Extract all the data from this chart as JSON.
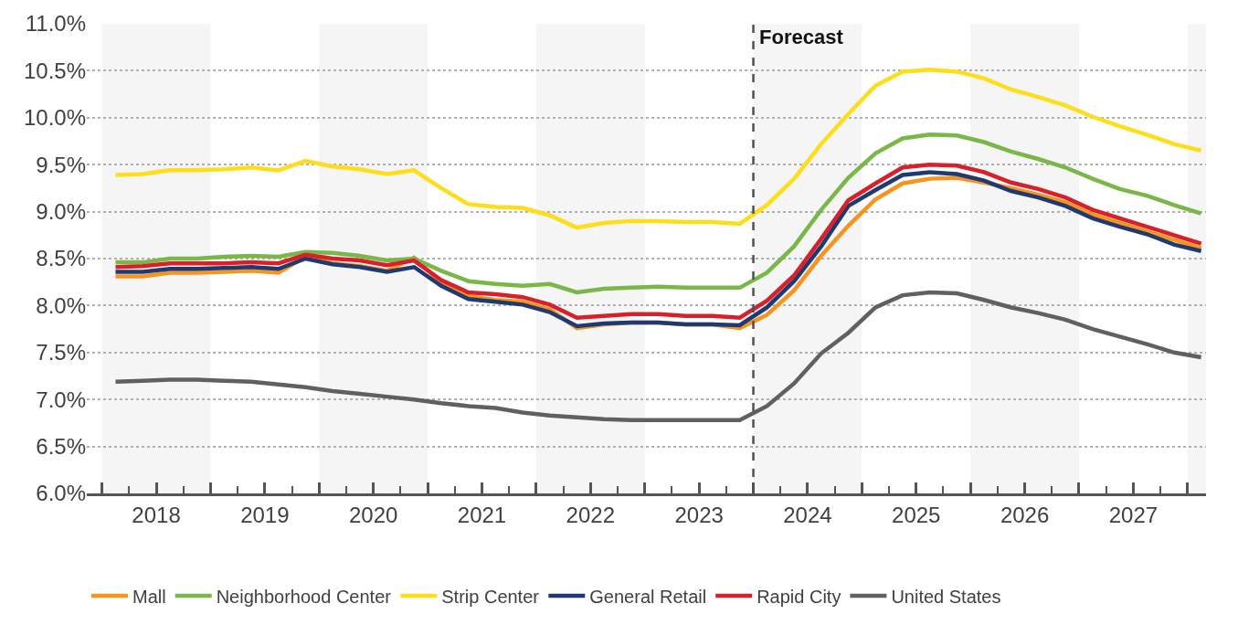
{
  "chart_data": {
    "type": "line",
    "x": [
      2018.125,
      2018.375,
      2018.625,
      2018.875,
      2019.125,
      2019.375,
      2019.625,
      2019.875,
      2020.125,
      2020.375,
      2020.625,
      2020.875,
      2021.125,
      2021.375,
      2021.625,
      2021.875,
      2022.125,
      2022.375,
      2022.625,
      2022.875,
      2023.125,
      2023.375,
      2023.625,
      2023.875,
      2024.125,
      2024.375,
      2024.625,
      2024.875,
      2025.125,
      2025.375,
      2025.625,
      2025.875,
      2026.125,
      2026.375,
      2026.625,
      2026.875,
      2027.125,
      2027.375,
      2027.625,
      2027.875,
      2028.125
    ],
    "series": [
      {
        "name": "Mall",
        "color": "#f7941d",
        "values": [
          8.31,
          8.31,
          8.35,
          8.35,
          8.36,
          8.37,
          8.35,
          8.52,
          8.45,
          8.42,
          8.37,
          8.51,
          8.24,
          8.1,
          8.06,
          8.04,
          7.96,
          7.76,
          7.8,
          7.82,
          7.82,
          7.8,
          7.8,
          7.76,
          7.9,
          8.16,
          8.53,
          8.85,
          9.13,
          9.3,
          9.35,
          9.36,
          9.31,
          9.25,
          9.18,
          9.1,
          8.97,
          8.88,
          8.79,
          8.7,
          8.61
        ]
      },
      {
        "name": "Neighborhood Center",
        "color": "#7ab648",
        "values": [
          8.46,
          8.46,
          8.5,
          8.5,
          8.52,
          8.53,
          8.52,
          8.57,
          8.56,
          8.53,
          8.48,
          8.5,
          8.37,
          8.26,
          8.23,
          8.21,
          8.23,
          8.14,
          8.18,
          8.19,
          8.2,
          8.19,
          8.19,
          8.19,
          8.35,
          8.63,
          9.02,
          9.36,
          9.62,
          9.78,
          9.82,
          9.81,
          9.74,
          9.64,
          9.56,
          9.47,
          9.35,
          9.24,
          9.17,
          9.07,
          8.98
        ]
      },
      {
        "name": "Strip Center",
        "color": "#fedd1b",
        "values": [
          9.39,
          9.4,
          9.44,
          9.44,
          9.45,
          9.47,
          9.44,
          9.54,
          9.48,
          9.45,
          9.4,
          9.44,
          9.25,
          9.08,
          9.05,
          9.04,
          8.96,
          8.83,
          8.88,
          8.9,
          8.9,
          8.89,
          8.89,
          8.87,
          9.07,
          9.35,
          9.72,
          10.04,
          10.34,
          10.49,
          10.51,
          10.49,
          10.42,
          10.3,
          10.22,
          10.13,
          10.01,
          9.91,
          9.82,
          9.72,
          9.65
        ]
      },
      {
        "name": "General Retail",
        "color": "#1f3a73",
        "values": [
          8.36,
          8.36,
          8.39,
          8.39,
          8.4,
          8.41,
          8.39,
          8.5,
          8.44,
          8.41,
          8.36,
          8.41,
          8.21,
          8.07,
          8.04,
          8.01,
          7.93,
          7.78,
          7.81,
          7.82,
          7.82,
          7.8,
          7.8,
          7.79,
          7.98,
          8.26,
          8.63,
          9.06,
          9.23,
          9.39,
          9.42,
          9.4,
          9.33,
          9.22,
          9.15,
          9.06,
          8.93,
          8.84,
          8.76,
          8.65,
          8.58
        ]
      },
      {
        "name": "Rapid City",
        "color": "#d7202a",
        "values": [
          8.41,
          8.42,
          8.45,
          8.45,
          8.45,
          8.46,
          8.45,
          8.54,
          8.5,
          8.48,
          8.43,
          8.48,
          8.27,
          8.14,
          8.12,
          8.09,
          8.01,
          7.87,
          7.89,
          7.91,
          7.91,
          7.89,
          7.89,
          7.87,
          8.05,
          8.32,
          8.71,
          9.12,
          9.3,
          9.47,
          9.5,
          9.49,
          9.42,
          9.31,
          9.24,
          9.15,
          9.02,
          8.93,
          8.84,
          8.75,
          8.66
        ]
      },
      {
        "name": "United States",
        "color": "#5f6062",
        "values": [
          7.19,
          7.2,
          7.21,
          7.21,
          7.2,
          7.19,
          7.16,
          7.13,
          7.09,
          7.06,
          7.03,
          7.0,
          6.96,
          6.93,
          6.91,
          6.86,
          6.83,
          6.81,
          6.79,
          6.78,
          6.78,
          6.78,
          6.78,
          6.78,
          6.93,
          7.17,
          7.49,
          7.71,
          7.98,
          8.11,
          8.14,
          8.13,
          8.06,
          7.98,
          7.92,
          7.85,
          7.75,
          7.67,
          7.59,
          7.5,
          7.45
        ]
      }
    ],
    "xlim": [
      2017.86,
      2028.17
    ],
    "xticks": [
      {
        "value": 2018,
        "label": null
      },
      {
        "value": 2018.5,
        "label": "2018"
      },
      {
        "value": 2019,
        "label": null
      },
      {
        "value": 2019.5,
        "label": "2019"
      },
      {
        "value": 2020,
        "label": null
      },
      {
        "value": 2020.5,
        "label": "2020"
      },
      {
        "value": 2021,
        "label": null
      },
      {
        "value": 2021.5,
        "label": "2021"
      },
      {
        "value": 2022,
        "label": null
      },
      {
        "value": 2022.5,
        "label": "2022"
      },
      {
        "value": 2023,
        "label": null
      },
      {
        "value": 2023.5,
        "label": "2023"
      },
      {
        "value": 2024,
        "label": null
      },
      {
        "value": 2024.5,
        "label": "2024"
      },
      {
        "value": 2025,
        "label": null
      },
      {
        "value": 2025.5,
        "label": "2025"
      },
      {
        "value": 2026,
        "label": null
      },
      {
        "value": 2026.5,
        "label": "2026"
      },
      {
        "value": 2027,
        "label": null
      },
      {
        "value": 2027.5,
        "label": "2027"
      },
      {
        "value": 2028,
        "label": null
      }
    ],
    "ylim": [
      6.0,
      11.0
    ],
    "yticks": [
      {
        "value": 6.0,
        "label": "6.0%"
      },
      {
        "value": 6.5,
        "label": "6.5%"
      },
      {
        "value": 7.0,
        "label": "7.0%"
      },
      {
        "value": 7.5,
        "label": "7.5%"
      },
      {
        "value": 8.0,
        "label": "8.0%"
      },
      {
        "value": 8.5,
        "label": "8.5%"
      },
      {
        "value": 9.0,
        "label": "9.0%"
      },
      {
        "value": 9.5,
        "label": "9.5%"
      },
      {
        "value": 10.0,
        "label": "10.0%"
      },
      {
        "value": 10.5,
        "label": "10.5%"
      },
      {
        "value": 11.0,
        "label": "11.0%"
      }
    ],
    "ref_lines": [
      {
        "axis": "x",
        "value": 2024,
        "label": "Forecast",
        "color": "#505050",
        "line_style": "dashed"
      }
    ],
    "bands": [
      {
        "axis": "x",
        "from": 2018,
        "to": 2019,
        "label": null,
        "color": "#f5f5f5"
      },
      {
        "axis": "x",
        "from": 2020,
        "to": 2021,
        "label": null,
        "color": "#f5f5f5"
      },
      {
        "axis": "x",
        "from": 2022,
        "to": 2023,
        "label": null,
        "color": "#f5f5f5"
      },
      {
        "axis": "x",
        "from": 2024,
        "to": 2025,
        "label": null,
        "color": "#f5f5f5"
      },
      {
        "axis": "x",
        "from": 2026,
        "to": 2027,
        "label": null,
        "color": "#f5f5f5"
      },
      {
        "axis": "x",
        "from": 2028,
        "to": 2028.17,
        "label": null,
        "color": "#f5f5f5"
      }
    ],
    "grid": "y",
    "legend": "bottom",
    "marker": "none",
    "line_style": "solid"
  }
}
